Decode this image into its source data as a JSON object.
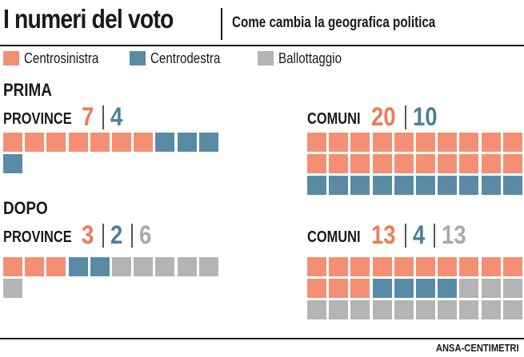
{
  "header": {
    "title": "I numeri del voto",
    "subtitle": "Come cambia la geografica politica"
  },
  "colors": {
    "centrosinistra": "#f58f73",
    "centrodestra": "#5a8ba6",
    "ballottaggio": "#b3b4b6"
  },
  "legend": [
    {
      "key": "centrosinistra",
      "label": "Centrosinistra"
    },
    {
      "key": "centrodestra",
      "label": "Centrodestra"
    },
    {
      "key": "ballottaggio",
      "label": "Ballottaggio"
    }
  ],
  "credit": "ANSA-CENTIMETRI",
  "chart_data": {
    "type": "waffle",
    "sections": [
      {
        "title": "PRIMA",
        "groups": [
          {
            "label": "PROVINCE",
            "values": {
              "centrosinistra": 7,
              "centrodestra": 4
            }
          },
          {
            "label": "COMUNI",
            "values": {
              "centrosinistra": 20,
              "centrodestra": 10
            }
          }
        ]
      },
      {
        "title": "DOPO",
        "groups": [
          {
            "label": "PROVINCE",
            "values": {
              "centrosinistra": 3,
              "centrodestra": 2,
              "ballottaggio": 6
            }
          },
          {
            "label": "COMUNI",
            "values": {
              "centrosinistra": 13,
              "centrodestra": 4,
              "ballottaggio": 13
            }
          }
        ]
      }
    ]
  }
}
